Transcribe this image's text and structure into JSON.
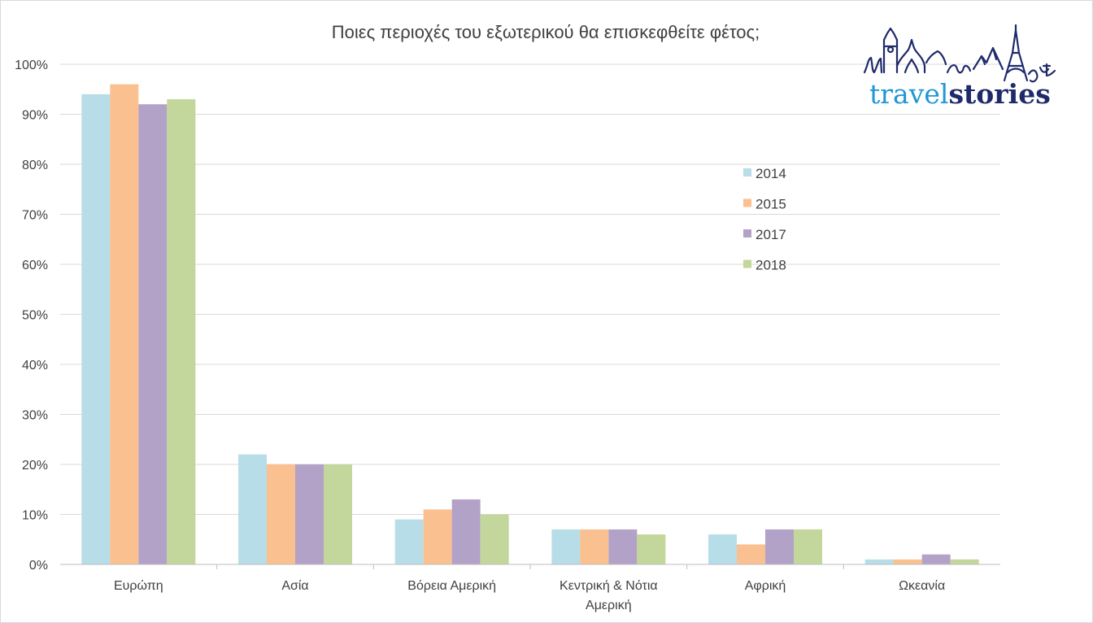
{
  "chart_data": {
    "type": "bar",
    "title": "Ποιες περιοχές του εξωτερικού θα επισκεφθείτε φέτος;",
    "xlabel": "",
    "ylabel": "",
    "ylim": [
      0,
      100
    ],
    "y_ticks": [
      "0%",
      "10%",
      "20%",
      "30%",
      "40%",
      "50%",
      "60%",
      "70%",
      "80%",
      "90%",
      "100%"
    ],
    "y_tick_values": [
      0,
      10,
      20,
      30,
      40,
      50,
      60,
      70,
      80,
      90,
      100
    ],
    "grid": true,
    "legend_position": "right",
    "categories": [
      [
        "Ευρώπη"
      ],
      [
        "Ασία"
      ],
      [
        "Βόρεια Αμερική"
      ],
      [
        "Κεντρική & Νότια",
        "Αμερική"
      ],
      [
        "Αφρική"
      ],
      [
        "Ωκεανία"
      ]
    ],
    "series": [
      {
        "name": "2014",
        "color": "#b7dde8",
        "values": [
          94,
          22,
          9,
          7,
          6,
          1
        ]
      },
      {
        "name": "2015",
        "color": "#fac090",
        "values": [
          96,
          20,
          11,
          7,
          4,
          1
        ]
      },
      {
        "name": "2017",
        "color": "#b3a2c7",
        "values": [
          92,
          20,
          13,
          7,
          7,
          2
        ]
      },
      {
        "name": "2018",
        "color": "#c3d69b",
        "values": [
          93,
          20,
          10,
          6,
          7,
          1
        ]
      }
    ]
  },
  "logo": {
    "part1": "travel",
    "part2": "stories",
    "color1": "#1f97d4",
    "color2": "#1f2a6b"
  }
}
